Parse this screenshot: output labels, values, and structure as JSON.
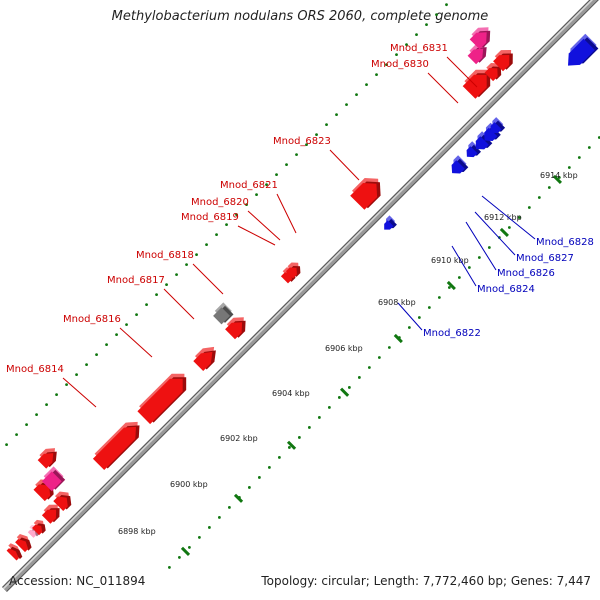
{
  "title": "Methylobacterium nodulans ORS 2060, complete genome",
  "footer": {
    "accession": "Accession: NC_011894",
    "stats": "Topology: circular; Length: 7,772,460 bp; Genes: 7,447"
  },
  "colors": {
    "forward_gene": "#ee1111",
    "reverse_gene": "#1111dd",
    "rna_gene": "#ee2288",
    "pseudo_gene": "#777777",
    "forward_label": "#cc0000",
    "reverse_label": "#0000bb",
    "tick": "#117711",
    "backbone": "#999999"
  },
  "ticks": [
    "6898 kbp",
    "6900 kbp",
    "6902 kbp",
    "6904 kbp",
    "6906 kbp",
    "6908 kbp",
    "6910 kbp",
    "6912 kbp",
    "6914 kbp"
  ],
  "forward_labels": [
    "Mnod_6814",
    "Mnod_6816",
    "Mnod_6817",
    "Mnod_6818",
    "Mnod_6819",
    "Mnod_6820",
    "Mnod_6821",
    "Mnod_6823",
    "Mnod_6830",
    "Mnod_6831"
  ],
  "reverse_labels": [
    "Mnod_6822",
    "Mnod_6824",
    "Mnod_6826",
    "Mnod_6827",
    "Mnod_6828"
  ]
}
